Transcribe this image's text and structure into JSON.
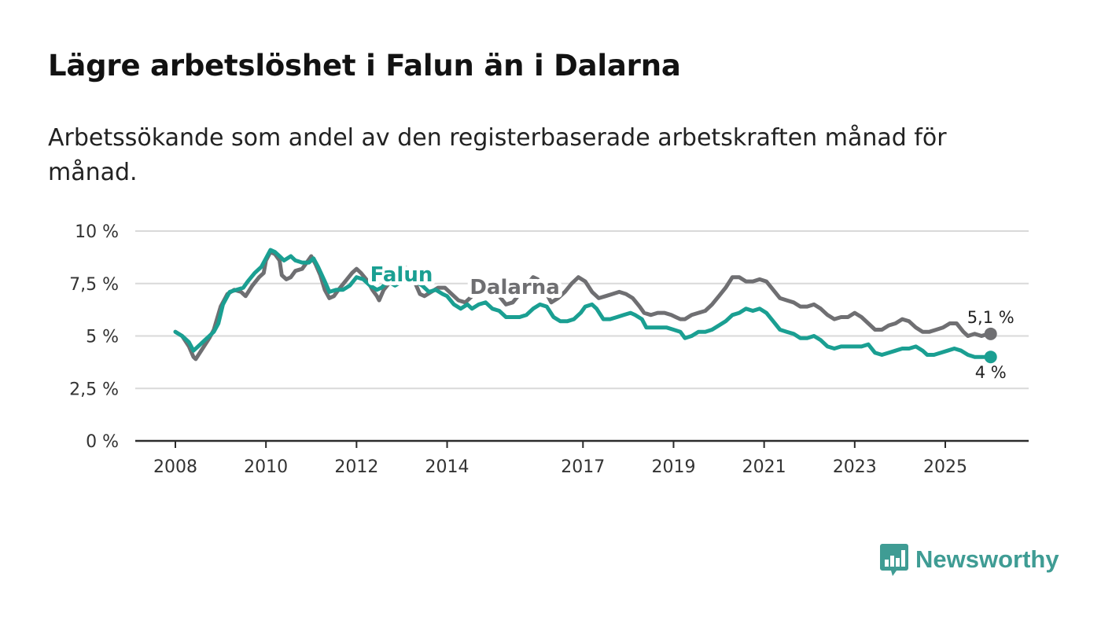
{
  "title": "Lägre arbetslöshet i Falun än i Dalarna",
  "subtitle": "Arbetssökande som andel av den registerbaserade arbetskraften månad för månad.",
  "brand": {
    "name": "Newsworthy",
    "color": "#3f9c94",
    "icon": "bar-chart-speech-bubble-icon"
  },
  "chart_data": {
    "type": "line",
    "x_unit": "year (decimal)",
    "xlim": [
      2007.1,
      2026.8
    ],
    "ylim": [
      0,
      10
    ],
    "y_ticks": [
      {
        "value": 0,
        "label": "0 %"
      },
      {
        "value": 2.5,
        "label": "2,5 %"
      },
      {
        "value": 5,
        "label": "5 %"
      },
      {
        "value": 7.5,
        "label": "7,5 %"
      },
      {
        "value": 10,
        "label": "10 %"
      }
    ],
    "x_ticks": [
      {
        "value": 2008,
        "label": "2008"
      },
      {
        "value": 2010,
        "label": "2010"
      },
      {
        "value": 2012,
        "label": "2012"
      },
      {
        "value": 2014,
        "label": "2014"
      },
      {
        "value": 2017,
        "label": "2017"
      },
      {
        "value": 2019,
        "label": "2019"
      },
      {
        "value": 2021,
        "label": "2021"
      },
      {
        "value": 2023,
        "label": "2023"
      },
      {
        "value": 2025,
        "label": "2025"
      }
    ],
    "grid": true,
    "series": [
      {
        "name": "Dalarna",
        "label": "Dalarna",
        "color": "#6f6f72",
        "end_label": "5,1 %",
        "label_at": [
          2014.5,
          7.0
        ],
        "points": [
          [
            2008.0,
            5.2
          ],
          [
            2008.15,
            5.0
          ],
          [
            2008.3,
            4.5
          ],
          [
            2008.4,
            4.0
          ],
          [
            2008.45,
            3.9
          ],
          [
            2008.6,
            4.4
          ],
          [
            2008.75,
            4.9
          ],
          [
            2008.85,
            5.3
          ],
          [
            2009.0,
            6.4
          ],
          [
            2009.15,
            7.0
          ],
          [
            2009.3,
            7.2
          ],
          [
            2009.45,
            7.1
          ],
          [
            2009.55,
            6.9
          ],
          [
            2009.7,
            7.4
          ],
          [
            2009.85,
            7.8
          ],
          [
            2009.95,
            8.0
          ],
          [
            2010.0,
            8.6
          ],
          [
            2010.1,
            9.0
          ],
          [
            2010.2,
            8.9
          ],
          [
            2010.3,
            8.6
          ],
          [
            2010.35,
            7.9
          ],
          [
            2010.45,
            7.7
          ],
          [
            2010.55,
            7.8
          ],
          [
            2010.65,
            8.1
          ],
          [
            2010.8,
            8.2
          ],
          [
            2010.9,
            8.5
          ],
          [
            2011.0,
            8.8
          ],
          [
            2011.1,
            8.4
          ],
          [
            2011.2,
            7.9
          ],
          [
            2011.3,
            7.2
          ],
          [
            2011.4,
            6.8
          ],
          [
            2011.5,
            6.9
          ],
          [
            2011.6,
            7.2
          ],
          [
            2011.75,
            7.6
          ],
          [
            2011.9,
            8.0
          ],
          [
            2012.0,
            8.2
          ],
          [
            2012.1,
            8.0
          ],
          [
            2012.25,
            7.6
          ],
          [
            2012.35,
            7.2
          ],
          [
            2012.45,
            6.9
          ],
          [
            2012.5,
            6.7
          ],
          [
            2012.6,
            7.2
          ],
          [
            2012.75,
            7.6
          ],
          [
            2012.85,
            8.0
          ],
          [
            2013.0,
            8.3
          ],
          [
            2013.15,
            8.2
          ],
          [
            2013.3,
            7.5
          ],
          [
            2013.4,
            7.0
          ],
          [
            2013.5,
            6.9
          ],
          [
            2013.65,
            7.1
          ],
          [
            2013.8,
            7.3
          ],
          [
            2013.95,
            7.3
          ],
          [
            2014.1,
            7.0
          ],
          [
            2014.25,
            6.7
          ],
          [
            2014.4,
            6.6
          ],
          [
            2014.55,
            6.9
          ],
          [
            2014.7,
            7.2
          ],
          [
            2014.85,
            7.5
          ],
          [
            2015.0,
            7.3
          ],
          [
            2015.15,
            6.9
          ],
          [
            2015.3,
            6.5
          ],
          [
            2015.45,
            6.6
          ],
          [
            2015.6,
            7.0
          ],
          [
            2015.75,
            7.4
          ],
          [
            2015.9,
            7.8
          ],
          [
            2016.0,
            7.7
          ],
          [
            2016.1,
            7.4
          ],
          [
            2016.2,
            7.0
          ],
          [
            2016.3,
            6.6
          ],
          [
            2016.45,
            6.8
          ],
          [
            2016.6,
            7.1
          ],
          [
            2016.75,
            7.5
          ],
          [
            2016.9,
            7.8
          ],
          [
            2017.05,
            7.6
          ],
          [
            2017.2,
            7.1
          ],
          [
            2017.35,
            6.8
          ],
          [
            2017.5,
            6.9
          ],
          [
            2017.65,
            7.0
          ],
          [
            2017.8,
            7.1
          ],
          [
            2017.95,
            7.0
          ],
          [
            2018.1,
            6.8
          ],
          [
            2018.25,
            6.4
          ],
          [
            2018.35,
            6.1
          ],
          [
            2018.5,
            6.0
          ],
          [
            2018.65,
            6.1
          ],
          [
            2018.8,
            6.1
          ],
          [
            2018.95,
            6.0
          ],
          [
            2019.05,
            5.9
          ],
          [
            2019.15,
            5.8
          ],
          [
            2019.25,
            5.8
          ],
          [
            2019.4,
            6.0
          ],
          [
            2019.55,
            6.1
          ],
          [
            2019.7,
            6.2
          ],
          [
            2019.85,
            6.5
          ],
          [
            2020.0,
            6.9
          ],
          [
            2020.15,
            7.3
          ],
          [
            2020.3,
            7.8
          ],
          [
            2020.45,
            7.8
          ],
          [
            2020.6,
            7.6
          ],
          [
            2020.75,
            7.6
          ],
          [
            2020.9,
            7.7
          ],
          [
            2021.05,
            7.6
          ],
          [
            2021.2,
            7.2
          ],
          [
            2021.35,
            6.8
          ],
          [
            2021.5,
            6.7
          ],
          [
            2021.65,
            6.6
          ],
          [
            2021.8,
            6.4
          ],
          [
            2021.95,
            6.4
          ],
          [
            2022.1,
            6.5
          ],
          [
            2022.25,
            6.3
          ],
          [
            2022.4,
            6.0
          ],
          [
            2022.55,
            5.8
          ],
          [
            2022.7,
            5.9
          ],
          [
            2022.85,
            5.9
          ],
          [
            2023.0,
            6.1
          ],
          [
            2023.15,
            5.9
          ],
          [
            2023.3,
            5.6
          ],
          [
            2023.45,
            5.3
          ],
          [
            2023.6,
            5.3
          ],
          [
            2023.75,
            5.5
          ],
          [
            2023.9,
            5.6
          ],
          [
            2024.05,
            5.8
          ],
          [
            2024.2,
            5.7
          ],
          [
            2024.35,
            5.4
          ],
          [
            2024.5,
            5.2
          ],
          [
            2024.65,
            5.2
          ],
          [
            2024.8,
            5.3
          ],
          [
            2024.95,
            5.4
          ],
          [
            2025.1,
            5.6
          ],
          [
            2025.25,
            5.6
          ],
          [
            2025.4,
            5.2
          ],
          [
            2025.5,
            5.0
          ],
          [
            2025.65,
            5.1
          ],
          [
            2025.8,
            5.0
          ],
          [
            2025.95,
            5.1
          ]
        ]
      },
      {
        "name": "Falun",
        "label": "Falun",
        "color": "#1a9f92",
        "end_label": "4 %",
        "label_at": [
          2012.3,
          7.6
        ],
        "points": [
          [
            2008.0,
            5.2
          ],
          [
            2008.15,
            5.0
          ],
          [
            2008.3,
            4.7
          ],
          [
            2008.4,
            4.3
          ],
          [
            2008.55,
            4.6
          ],
          [
            2008.7,
            4.9
          ],
          [
            2008.85,
            5.2
          ],
          [
            2008.95,
            5.6
          ],
          [
            2009.05,
            6.5
          ],
          [
            2009.2,
            7.1
          ],
          [
            2009.35,
            7.2
          ],
          [
            2009.5,
            7.3
          ],
          [
            2009.6,
            7.6
          ],
          [
            2009.75,
            8.0
          ],
          [
            2009.9,
            8.3
          ],
          [
            2010.0,
            8.7
          ],
          [
            2010.1,
            9.1
          ],
          [
            2010.2,
            9.0
          ],
          [
            2010.3,
            8.8
          ],
          [
            2010.4,
            8.6
          ],
          [
            2010.55,
            8.8
          ],
          [
            2010.65,
            8.6
          ],
          [
            2010.8,
            8.5
          ],
          [
            2010.95,
            8.5
          ],
          [
            2011.05,
            8.7
          ],
          [
            2011.15,
            8.3
          ],
          [
            2011.3,
            7.6
          ],
          [
            2011.4,
            7.1
          ],
          [
            2011.55,
            7.2
          ],
          [
            2011.7,
            7.2
          ],
          [
            2011.85,
            7.4
          ],
          [
            2012.0,
            7.8
          ],
          [
            2012.15,
            7.7
          ],
          [
            2012.3,
            7.4
          ],
          [
            2012.45,
            7.2
          ],
          [
            2012.55,
            7.3
          ],
          [
            2012.7,
            7.6
          ],
          [
            2012.85,
            7.4
          ],
          [
            2013.0,
            7.6
          ],
          [
            2013.15,
            7.8
          ],
          [
            2013.3,
            7.6
          ],
          [
            2013.45,
            7.4
          ],
          [
            2013.6,
            7.1
          ],
          [
            2013.75,
            7.2
          ],
          [
            2013.9,
            7.0
          ],
          [
            2014.0,
            6.9
          ],
          [
            2014.15,
            6.5
          ],
          [
            2014.3,
            6.3
          ],
          [
            2014.45,
            6.5
          ],
          [
            2014.55,
            6.3
          ],
          [
            2014.7,
            6.5
          ],
          [
            2014.85,
            6.6
          ],
          [
            2015.0,
            6.3
          ],
          [
            2015.15,
            6.2
          ],
          [
            2015.3,
            5.9
          ],
          [
            2015.45,
            5.9
          ],
          [
            2015.6,
            5.9
          ],
          [
            2015.75,
            6.0
          ],
          [
            2015.9,
            6.3
          ],
          [
            2016.05,
            6.5
          ],
          [
            2016.2,
            6.4
          ],
          [
            2016.35,
            5.9
          ],
          [
            2016.5,
            5.7
          ],
          [
            2016.65,
            5.7
          ],
          [
            2016.8,
            5.8
          ],
          [
            2016.95,
            6.1
          ],
          [
            2017.05,
            6.4
          ],
          [
            2017.2,
            6.5
          ],
          [
            2017.3,
            6.3
          ],
          [
            2017.45,
            5.8
          ],
          [
            2017.6,
            5.8
          ],
          [
            2017.75,
            5.9
          ],
          [
            2017.9,
            6.0
          ],
          [
            2018.05,
            6.1
          ],
          [
            2018.15,
            6.0
          ],
          [
            2018.3,
            5.8
          ],
          [
            2018.4,
            5.4
          ],
          [
            2018.55,
            5.4
          ],
          [
            2018.7,
            5.4
          ],
          [
            2018.85,
            5.4
          ],
          [
            2019.0,
            5.3
          ],
          [
            2019.15,
            5.2
          ],
          [
            2019.25,
            4.9
          ],
          [
            2019.4,
            5.0
          ],
          [
            2019.55,
            5.2
          ],
          [
            2019.7,
            5.2
          ],
          [
            2019.85,
            5.3
          ],
          [
            2020.0,
            5.5
          ],
          [
            2020.15,
            5.7
          ],
          [
            2020.3,
            6.0
          ],
          [
            2020.45,
            6.1
          ],
          [
            2020.6,
            6.3
          ],
          [
            2020.75,
            6.2
          ],
          [
            2020.9,
            6.3
          ],
          [
            2021.05,
            6.1
          ],
          [
            2021.2,
            5.7
          ],
          [
            2021.35,
            5.3
          ],
          [
            2021.5,
            5.2
          ],
          [
            2021.65,
            5.1
          ],
          [
            2021.8,
            4.9
          ],
          [
            2021.95,
            4.9
          ],
          [
            2022.1,
            5.0
          ],
          [
            2022.25,
            4.8
          ],
          [
            2022.4,
            4.5
          ],
          [
            2022.55,
            4.4
          ],
          [
            2022.7,
            4.5
          ],
          [
            2022.85,
            4.5
          ],
          [
            2023.0,
            4.5
          ],
          [
            2023.15,
            4.5
          ],
          [
            2023.3,
            4.6
          ],
          [
            2023.45,
            4.2
          ],
          [
            2023.6,
            4.1
          ],
          [
            2023.75,
            4.2
          ],
          [
            2023.9,
            4.3
          ],
          [
            2024.05,
            4.4
          ],
          [
            2024.2,
            4.4
          ],
          [
            2024.35,
            4.5
          ],
          [
            2024.5,
            4.3
          ],
          [
            2024.6,
            4.1
          ],
          [
            2024.75,
            4.1
          ],
          [
            2024.9,
            4.2
          ],
          [
            2025.05,
            4.3
          ],
          [
            2025.2,
            4.4
          ],
          [
            2025.35,
            4.3
          ],
          [
            2025.5,
            4.1
          ],
          [
            2025.65,
            4.0
          ],
          [
            2025.8,
            4.0
          ],
          [
            2025.95,
            4.0
          ]
        ]
      }
    ]
  }
}
